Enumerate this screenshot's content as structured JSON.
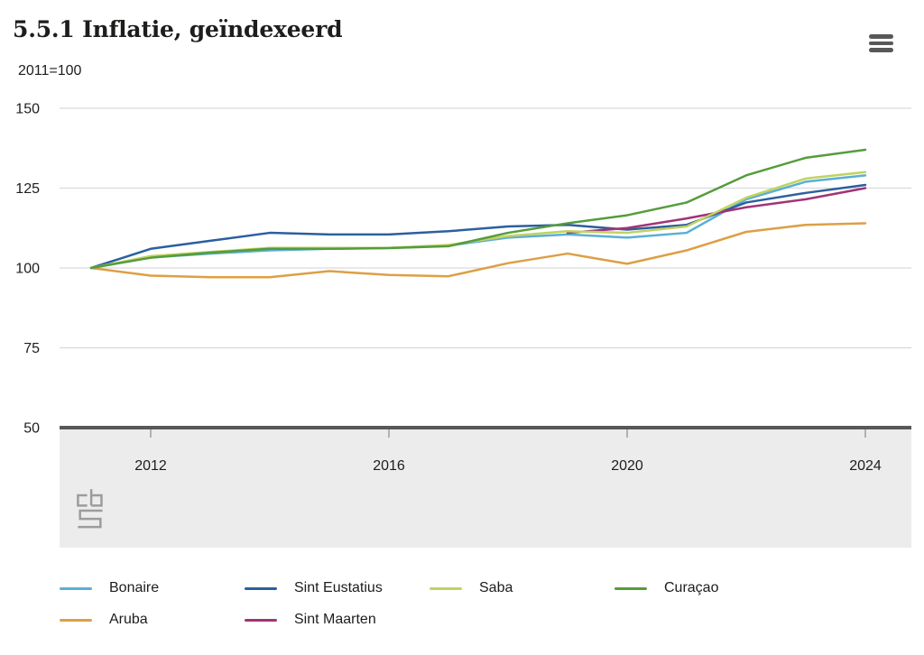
{
  "header": {
    "menu_icon": "hamburger-menu-icon"
  },
  "colors": {
    "text": "#1d1d1b",
    "gridline": "#d9d9d9",
    "axis": "#58585a",
    "footer_band": "#ececec",
    "tick": "#a3a3a3",
    "logo_gray": "#9c9c9c"
  },
  "chart_data": {
    "type": "line",
    "title": "5.5.1 Inflatie, geïndexeerd",
    "subtitle": "2011=100",
    "x": [
      2011,
      2012,
      2013,
      2014,
      2015,
      2016,
      2017,
      2018,
      2019,
      2020,
      2021,
      2022,
      2023,
      2024
    ],
    "series": [
      {
        "name": "Bonaire",
        "color": "#5aafd6",
        "values": [
          100,
          103.3,
          104.5,
          105.5,
          106,
          106.3,
          107,
          109.5,
          110.5,
          109.5,
          111,
          121.5,
          127,
          129
        ]
      },
      {
        "name": "Aruba",
        "color": "#dd9f45",
        "values": [
          100,
          97.6,
          97.1,
          97.1,
          99,
          97.8,
          97.4,
          101.5,
          104.5,
          101.3,
          105.5,
          111.3,
          113.5,
          114
        ]
      },
      {
        "name": "Sint Eustatius",
        "color": "#2c5f9e",
        "values": [
          100,
          106,
          108.5,
          111,
          110.5,
          110.5,
          111.5,
          113,
          113.5,
          112,
          113.5,
          120.5,
          123.5,
          126
        ]
      },
      {
        "name": "Sint Maarten",
        "color": "#a13477",
        "values": [
          null,
          null,
          null,
          null,
          null,
          null,
          null,
          null,
          111,
          112.5,
          115.5,
          119,
          121.5,
          125
        ]
      },
      {
        "name": "Saba",
        "color": "#c0d35f",
        "values": [
          100,
          103.7,
          105,
          106.3,
          106.3,
          106.3,
          107.2,
          110,
          111.5,
          111,
          113,
          122,
          128,
          130
        ]
      },
      {
        "name": "Curaçao",
        "color": "#559c3c",
        "values": [
          100,
          103.2,
          104.8,
          106,
          106,
          106.2,
          106.8,
          111,
          114,
          116.5,
          120.5,
          129,
          134.5,
          137
        ]
      }
    ],
    "legend_order": [
      "Bonaire",
      "Sint Eustatius",
      "Saba",
      "Curaçao",
      "Aruba",
      "Sint Maarten"
    ],
    "ylim": [
      50,
      150
    ],
    "yticks": [
      50,
      75,
      100,
      125,
      150
    ],
    "xticks": [
      2012,
      2016,
      2020,
      2024
    ],
    "xlabel": "",
    "ylabel": "",
    "grid": true,
    "legend_position": "bottom"
  }
}
